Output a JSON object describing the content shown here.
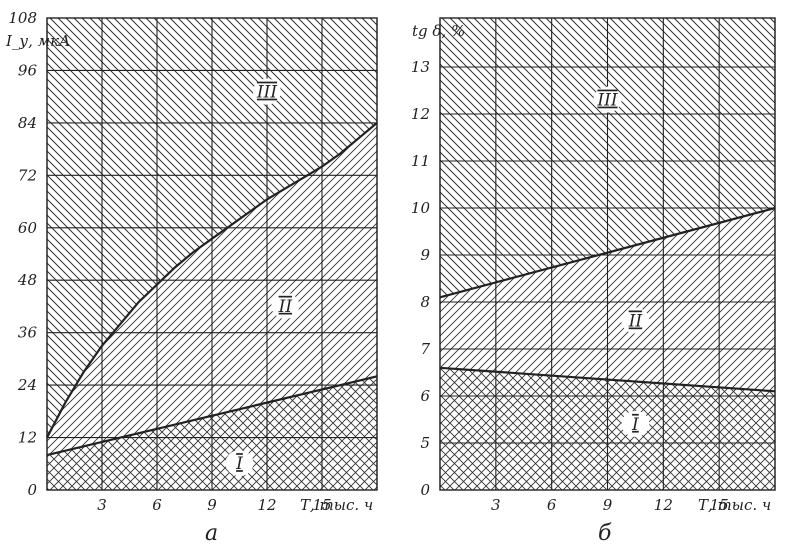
{
  "chart_data": [
    {
      "type": "area",
      "caption": "а",
      "ylabel": "I_у, мкА",
      "xlabel": "Т, тыс. ч",
      "xlim": [
        0,
        18
      ],
      "ylim": [
        0,
        108
      ],
      "x_ticks": [
        3,
        6,
        9,
        12,
        15
      ],
      "y_ticks": [
        0,
        12,
        24,
        36,
        48,
        60,
        72,
        84,
        96,
        108
      ],
      "grid": true,
      "zones": [
        {
          "label": "I",
          "x": 10.5,
          "y": 5
        },
        {
          "label": "II",
          "x": 13,
          "y": 41
        },
        {
          "label": "III",
          "x": 12,
          "y": 90
        }
      ],
      "series": [
        {
          "name": "",
          "x": [
            0,
            1,
            2,
            3,
            4,
            5,
            6,
            7,
            8,
            9,
            10,
            11,
            12,
            13,
            14,
            15,
            16,
            17,
            18
          ],
          "values": [
            12,
            20,
            27,
            33,
            38,
            43,
            47,
            51,
            54.5,
            57.5,
            60.5,
            63.5,
            66.5,
            69,
            71.5,
            74,
            77,
            80.5,
            84
          ]
        },
        {
          "name": "",
          "x": [
            0,
            18
          ],
          "values": [
            8,
            26
          ]
        }
      ]
    },
    {
      "type": "area",
      "caption": "б",
      "ylabel": "tg δ, %",
      "xlabel": "Т, тыс. ч",
      "xlim": [
        0,
        18
      ],
      "ylim": [
        0,
        13.5
      ],
      "x_ticks": [
        3,
        6,
        9,
        12,
        15
      ],
      "y_ticks": [
        0,
        5,
        6,
        7,
        8,
        9,
        10,
        11,
        12,
        13
      ],
      "grid": true,
      "zones": [
        {
          "label": "I",
          "x": 10.5,
          "y": 5.3
        },
        {
          "label": "II",
          "x": 10.5,
          "y": 7.5
        },
        {
          "label": "III",
          "x": 9,
          "y": 12.2
        }
      ],
      "series": [
        {
          "name": "",
          "x": [
            0,
            18
          ],
          "values": [
            8.1,
            10
          ]
        },
        {
          "name": "",
          "x": [
            0,
            18
          ],
          "values": [
            6.6,
            6.1
          ]
        }
      ]
    }
  ]
}
